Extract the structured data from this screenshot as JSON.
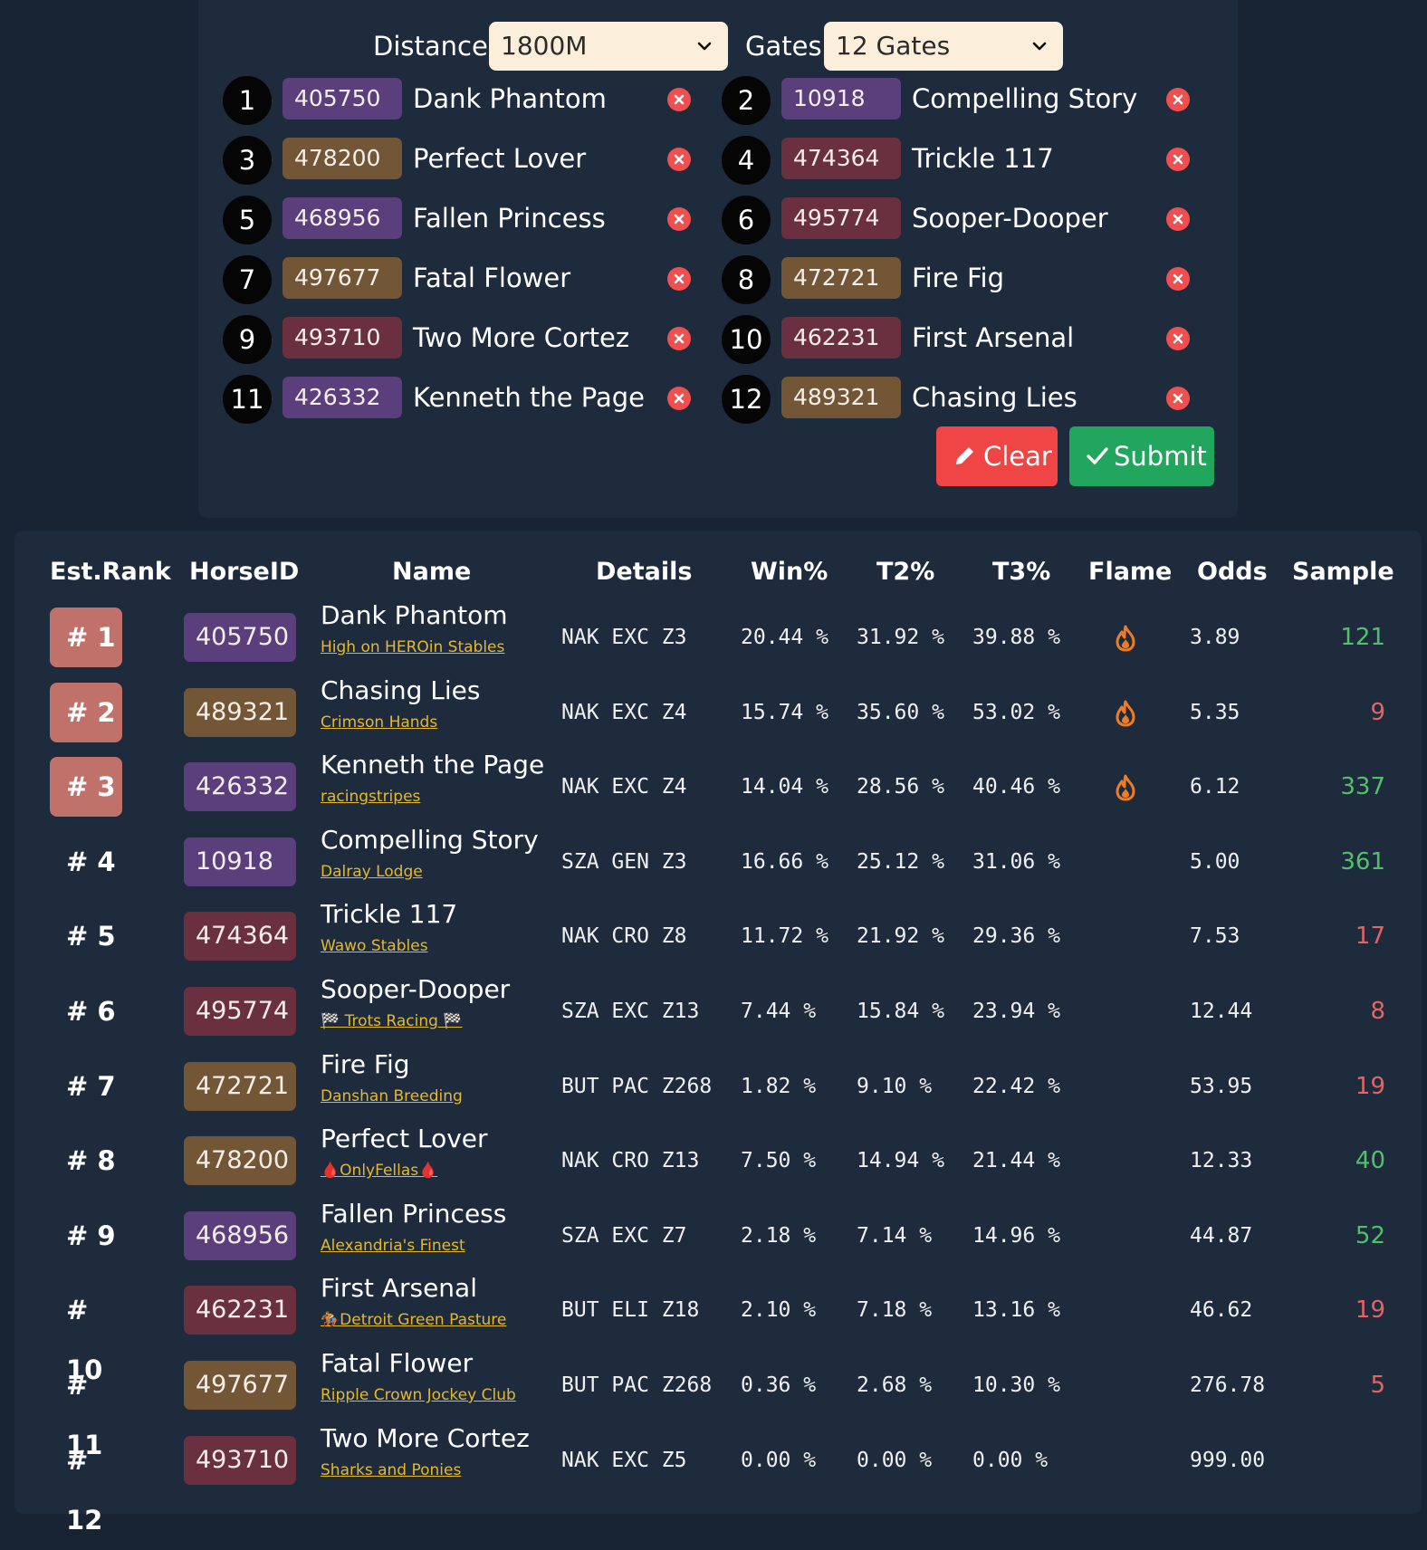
{
  "form": {
    "distance_label": "Distance:",
    "distance_value": "1800M",
    "gates_label": "Gates:",
    "gates_value": "12 Gates",
    "entries": [
      {
        "gate": "1",
        "id": "405750",
        "name": "Dank Phantom",
        "chip_color": "#5b3f7d"
      },
      {
        "gate": "2",
        "id": "10918",
        "name": "Compelling Story",
        "chip_color": "#5b3f7d"
      },
      {
        "gate": "3",
        "id": "478200",
        "name": "Perfect Lover",
        "chip_color": "#725636"
      },
      {
        "gate": "4",
        "id": "474364",
        "name": "Trickle 117",
        "chip_color": "#6b3040"
      },
      {
        "gate": "5",
        "id": "468956",
        "name": "Fallen Princess",
        "chip_color": "#5b3f7d"
      },
      {
        "gate": "6",
        "id": "495774",
        "name": "Sooper-Dooper",
        "chip_color": "#6b3040"
      },
      {
        "gate": "7",
        "id": "497677",
        "name": "Fatal Flower",
        "chip_color": "#725636"
      },
      {
        "gate": "8",
        "id": "472721",
        "name": "Fire Fig",
        "chip_color": "#725636"
      },
      {
        "gate": "9",
        "id": "493710",
        "name": "Two More Cortez",
        "chip_color": "#6b3040"
      },
      {
        "gate": "10",
        "id": "462231",
        "name": "First Arsenal",
        "chip_color": "#6b3040"
      },
      {
        "gate": "11",
        "id": "426332",
        "name": "Kenneth the Page",
        "chip_color": "#5b3f7d"
      },
      {
        "gate": "12",
        "id": "489321",
        "name": "Chasing Lies",
        "chip_color": "#725636"
      }
    ],
    "clear_label": "Clear",
    "submit_label": "Submit"
  },
  "results": {
    "headers": {
      "rank": "Est.Rank",
      "horse_id": "HorseID",
      "name": "Name",
      "details": "Details",
      "win": "Win%",
      "t2": "T2%",
      "t3": "T3%",
      "flame": "Flame",
      "odds": "Odds",
      "sample": "Sample"
    },
    "rows": [
      {
        "rank": "# 1",
        "highlight": true,
        "id": "405750",
        "chip_color": "#5b3f7d",
        "name": "Dank Phantom",
        "stable": "High on HEROin Stables",
        "details": "NAK EXC Z3",
        "win": "20.44 %",
        "t2": "31.92 %",
        "t3": "39.88 %",
        "flame": true,
        "odds": "3.89",
        "sample": "121",
        "sample_status": "good"
      },
      {
        "rank": "# 2",
        "highlight": true,
        "id": "489321",
        "chip_color": "#725636",
        "name": "Chasing Lies",
        "stable": "Crimson Hands",
        "details": "NAK EXC Z4",
        "win": "15.74 %",
        "t2": "35.60 %",
        "t3": "53.02 %",
        "flame": true,
        "odds": "5.35",
        "sample": "9",
        "sample_status": "bad"
      },
      {
        "rank": "# 3",
        "highlight": true,
        "id": "426332",
        "chip_color": "#5b3f7d",
        "name": "Kenneth the Page",
        "stable": "racingstripes",
        "details": "NAK EXC Z4",
        "win": "14.04 %",
        "t2": "28.56 %",
        "t3": "40.46 %",
        "flame": true,
        "odds": "6.12",
        "sample": "337",
        "sample_status": "good"
      },
      {
        "rank": "# 4",
        "highlight": false,
        "id": "10918",
        "chip_color": "#5b3f7d",
        "name": "Compelling Story",
        "stable": "Dalray Lodge",
        "details": "SZA GEN Z3",
        "win": "16.66 %",
        "t2": "25.12 %",
        "t3": "31.06 %",
        "flame": false,
        "odds": "5.00",
        "sample": "361",
        "sample_status": "good"
      },
      {
        "rank": "# 5",
        "highlight": false,
        "id": "474364",
        "chip_color": "#6b3040",
        "name": "Trickle 117",
        "stable": "Wawo Stables",
        "details": "NAK CRO Z8",
        "win": "11.72 %",
        "t2": "21.92 %",
        "t3": "29.36 %",
        "flame": false,
        "odds": "7.53",
        "sample": "17",
        "sample_status": "bad"
      },
      {
        "rank": "# 6",
        "highlight": false,
        "id": "495774",
        "chip_color": "#6b3040",
        "name": "Sooper-Dooper",
        "stable": "🏁 Trots Racing 🏁",
        "details": "SZA EXC Z13",
        "win": "7.44 %",
        "t2": "15.84 %",
        "t3": "23.94 %",
        "flame": false,
        "odds": "12.44",
        "sample": "8",
        "sample_status": "bad"
      },
      {
        "rank": "# 7",
        "highlight": false,
        "id": "472721",
        "chip_color": "#725636",
        "name": "Fire Fig",
        "stable": "Danshan Breeding",
        "details": "BUT PAC Z268",
        "win": "1.82 %",
        "t2": "9.10 %",
        "t3": "22.42 %",
        "flame": false,
        "odds": "53.95",
        "sample": "19",
        "sample_status": "bad"
      },
      {
        "rank": "# 8",
        "highlight": false,
        "id": "478200",
        "chip_color": "#725636",
        "name": "Perfect Lover",
        "stable": "🩸OnlyFellas🩸",
        "details": "NAK CRO Z13",
        "win": "7.50 %",
        "t2": "14.94 %",
        "t3": "21.44 %",
        "flame": false,
        "odds": "12.33",
        "sample": "40",
        "sample_status": "good"
      },
      {
        "rank": "# 9",
        "highlight": false,
        "id": "468956",
        "chip_color": "#5b3f7d",
        "name": "Fallen Princess",
        "stable": "Alexandria's Finest",
        "details": "SZA EXC Z7",
        "win": "2.18 %",
        "t2": "7.14 %",
        "t3": "14.96 %",
        "flame": false,
        "odds": "44.87",
        "sample": "52",
        "sample_status": "good"
      },
      {
        "rank": "# 10",
        "highlight": false,
        "id": "462231",
        "chip_color": "#6b3040",
        "name": "First Arsenal",
        "stable": "🏇Detroit Green Pasture",
        "details": "BUT ELI Z18",
        "win": "2.10 %",
        "t2": "7.18 %",
        "t3": "13.16 %",
        "flame": false,
        "odds": "46.62",
        "sample": "19",
        "sample_status": "bad"
      },
      {
        "rank": "# 11",
        "highlight": false,
        "id": "497677",
        "chip_color": "#725636",
        "name": "Fatal Flower",
        "stable": "Ripple Crown Jockey Club",
        "details": "BUT PAC Z268",
        "win": "0.36 %",
        "t2": "2.68 %",
        "t3": "10.30 %",
        "flame": false,
        "odds": "276.78",
        "sample": "5",
        "sample_status": "bad"
      },
      {
        "rank": "# 12",
        "highlight": false,
        "id": "493710",
        "chip_color": "#6b3040",
        "name": "Two More Cortez",
        "stable": "Sharks and Ponies",
        "details": "NAK EXC Z5",
        "win": "0.00 %",
        "t2": "0.00 %",
        "t3": "0.00 %",
        "flame": false,
        "odds": "999.00",
        "sample": "",
        "sample_status": "none"
      }
    ]
  },
  "icons": {
    "chevron": "chevron-down-icon",
    "remove": "close-circle-icon",
    "clear": "pencil-icon",
    "submit": "check-icon",
    "flame": "fire-icon"
  },
  "colors": {
    "background": "#182434",
    "panel": "#1d2b3d",
    "select_bg": "#fbeedb",
    "clear": "#ef4545",
    "submit": "#22a65e",
    "rank_highlight": "#c0716a",
    "stable_link": "#e5b830",
    "sample_good": "#52c06b",
    "sample_bad": "#e46464",
    "flame": "#f07c22"
  }
}
